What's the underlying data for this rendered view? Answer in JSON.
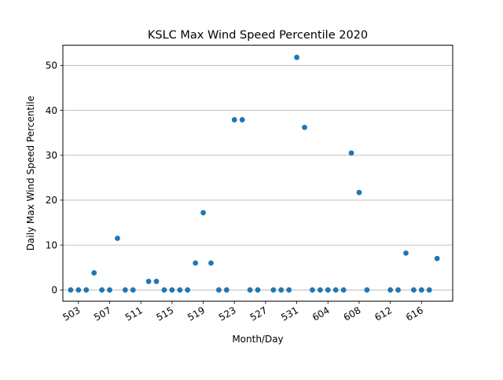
{
  "chart_data": {
    "type": "scatter",
    "title": "KSLC Max Wind Speed Percentile 2020",
    "xlabel": "Month/Day",
    "ylabel": "Daily Max Wind Speed Percentile",
    "xlim": [
      0,
      50
    ],
    "ylim": [
      -2.5,
      54.5
    ],
    "grid": "horizontal",
    "color": "#1f77b4",
    "y_ticks": [
      0,
      10,
      20,
      30,
      40,
      50
    ],
    "x_ticks": [
      {
        "x": 2,
        "label": "503"
      },
      {
        "x": 6,
        "label": "507"
      },
      {
        "x": 10,
        "label": "511"
      },
      {
        "x": 14,
        "label": "515"
      },
      {
        "x": 18,
        "label": "519"
      },
      {
        "x": 22,
        "label": "523"
      },
      {
        "x": 26,
        "label": "527"
      },
      {
        "x": 30,
        "label": "531"
      },
      {
        "x": 34,
        "label": "604"
      },
      {
        "x": 38,
        "label": "608"
      },
      {
        "x": 42,
        "label": "612"
      },
      {
        "x": 46,
        "label": "616"
      }
    ],
    "points": [
      {
        "x": 1,
        "y": 0
      },
      {
        "x": 2,
        "y": 0
      },
      {
        "x": 3,
        "y": 0
      },
      {
        "x": 4,
        "y": 3.8
      },
      {
        "x": 5,
        "y": 0
      },
      {
        "x": 6,
        "y": 0
      },
      {
        "x": 7,
        "y": 11.5
      },
      {
        "x": 8,
        "y": 0
      },
      {
        "x": 9,
        "y": 0
      },
      {
        "x": 11,
        "y": 1.9
      },
      {
        "x": 12,
        "y": 1.9
      },
      {
        "x": 13,
        "y": 0
      },
      {
        "x": 14,
        "y": 0
      },
      {
        "x": 15,
        "y": 0
      },
      {
        "x": 16,
        "y": 0
      },
      {
        "x": 17,
        "y": 6.0
      },
      {
        "x": 18,
        "y": 17.2
      },
      {
        "x": 19,
        "y": 6.0
      },
      {
        "x": 20,
        "y": 0
      },
      {
        "x": 21,
        "y": 0
      },
      {
        "x": 22,
        "y": 37.9
      },
      {
        "x": 23,
        "y": 37.9
      },
      {
        "x": 24,
        "y": 0
      },
      {
        "x": 25,
        "y": 0
      },
      {
        "x": 27,
        "y": 0
      },
      {
        "x": 28,
        "y": 0
      },
      {
        "x": 29,
        "y": 0
      },
      {
        "x": 30,
        "y": 51.8
      },
      {
        "x": 31,
        "y": 36.2
      },
      {
        "x": 32,
        "y": 0
      },
      {
        "x": 33,
        "y": 0
      },
      {
        "x": 34,
        "y": 0
      },
      {
        "x": 35,
        "y": 0
      },
      {
        "x": 36,
        "y": 0
      },
      {
        "x": 37,
        "y": 30.5
      },
      {
        "x": 38,
        "y": 21.7
      },
      {
        "x": 39,
        "y": 0
      },
      {
        "x": 42,
        "y": 0
      },
      {
        "x": 43,
        "y": 0
      },
      {
        "x": 44,
        "y": 8.2
      },
      {
        "x": 45,
        "y": 0
      },
      {
        "x": 46,
        "y": 0
      },
      {
        "x": 47,
        "y": 0
      },
      {
        "x": 48,
        "y": 7.0
      }
    ]
  }
}
